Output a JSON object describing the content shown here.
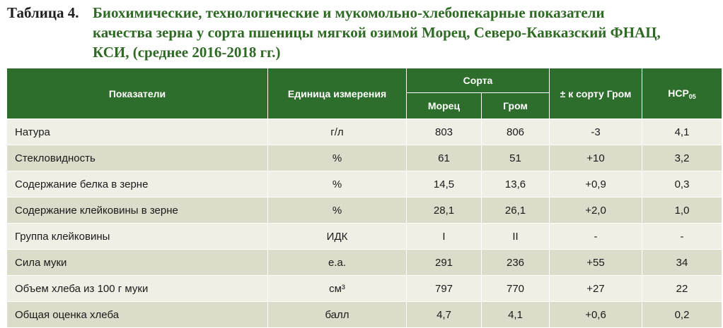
{
  "caption": {
    "label": "Таблица 4.",
    "line1": "Биохимические, технологические и мукомольно-хлебопекарные показатели",
    "line2": "качества зерна у сорта пшеницы мягкой озимой Морец, Северо-Кавказский ФНАЦ,",
    "line3": "КСИ, (среднее 2016-2018 гг.)"
  },
  "header": {
    "indicator": "Показатели",
    "unit": "Единица измерения",
    "varieties": "Сорта",
    "variety1": "Морец",
    "variety2": "Гром",
    "diff": "± к сорту Гром",
    "lsd_main": "НСР",
    "lsd_sub": "05"
  },
  "rows": [
    {
      "name": "Натура",
      "unit": "г/л",
      "morets": "803",
      "grom": "806",
      "diff": "-3",
      "lsd": "4,1"
    },
    {
      "name": "Стекловидность",
      "unit": "%",
      "morets": "61",
      "grom": "51",
      "diff": "+10",
      "lsd": "3,2"
    },
    {
      "name": "Содержание белка в зерне",
      "unit": "%",
      "morets": "14,5",
      "grom": "13,6",
      "diff": "+0,9",
      "lsd": "0,3"
    },
    {
      "name": "Содержание клейковины в зерне",
      "unit": "%",
      "morets": "28,1",
      "grom": "26,1",
      "diff": "+2,0",
      "lsd": "1,0"
    },
    {
      "name": "Группа клейковины",
      "unit": "ИДК",
      "morets": "I",
      "grom": "II",
      "diff": "-",
      "lsd": "-"
    },
    {
      "name": "Сила муки",
      "unit": "е.а.",
      "morets": "291",
      "grom": "236",
      "diff": "+55",
      "lsd": "34"
    },
    {
      "name": "Объем хлеба из 100 г муки",
      "unit": "см³",
      "morets": "797",
      "grom": "770",
      "diff": "+27",
      "lsd": "22"
    },
    {
      "name": "Общая оценка хлеба",
      "unit": "балл",
      "morets": "4,7",
      "grom": "4,1",
      "diff": "+0,6",
      "lsd": "0,2"
    }
  ]
}
